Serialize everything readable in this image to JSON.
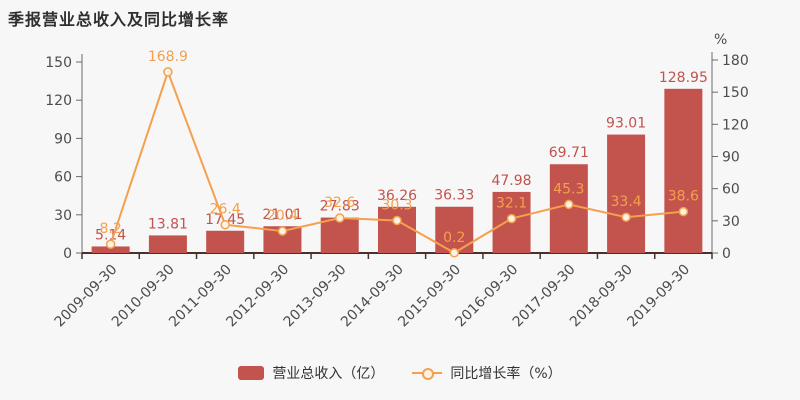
{
  "title": "季报营业总收入及同比增长率",
  "legend": {
    "bar": "营业总收入（亿）",
    "line": "同比增长率（%）"
  },
  "colors": {
    "background": "#f7f7f8",
    "title_text": "#2f2f2f",
    "bar": "#c2534d",
    "line": "#f4a04e",
    "marker_fill": "#fdf3e0",
    "axis_text": "#4d4d4d",
    "y_axis_line": "#6b6b6b",
    "x_axis_line": "#4a312b"
  },
  "chart_data": {
    "type": "bar+line",
    "title": "季报营业总收入及同比增长率",
    "categories": [
      "2009-09-30",
      "2010-09-30",
      "2011-09-30",
      "2012-09-30",
      "2013-09-30",
      "2014-09-30",
      "2015-09-30",
      "2016-09-30",
      "2017-09-30",
      "2018-09-30",
      "2019-09-30"
    ],
    "series": [
      {
        "name": "营业总收入（亿）",
        "type": "bar",
        "axis": "left",
        "values": [
          5.14,
          13.81,
          17.45,
          21.01,
          27.83,
          36.26,
          36.33,
          47.98,
          69.71,
          93.01,
          128.95
        ]
      },
      {
        "name": "同比增长率（%）",
        "type": "line",
        "axis": "right",
        "values": [
          8.2,
          168.9,
          26.4,
          20.4,
          32.6,
          30.3,
          0.2,
          32.1,
          45.3,
          33.4,
          38.6
        ]
      }
    ],
    "left_axis": {
      "min": 0,
      "max": 150,
      "ticks": [
        0,
        30,
        60,
        90,
        120,
        150
      ]
    },
    "right_axis": {
      "min": 0,
      "max": 180,
      "ticks": [
        0,
        30,
        60,
        90,
        120,
        150,
        180
      ],
      "unit": "%"
    },
    "x_tick_rotation_deg": 45,
    "grid": false,
    "legend_position": "bottom",
    "value_labels": true
  }
}
